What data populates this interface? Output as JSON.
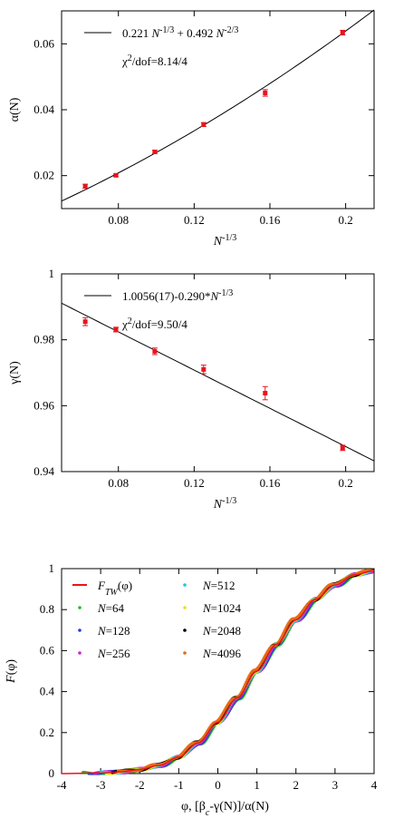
{
  "chart_data": [
    {
      "type": "scatter",
      "ylabel": "α(N)",
      "xlabel": "N^{-1/3}",
      "xlim": [
        0.05,
        0.215
      ],
      "ylim": [
        0.01,
        0.07
      ],
      "xticks": [
        "0.08",
        "0.12",
        "0.16",
        "0.2"
      ],
      "xtick_values": [
        0.08,
        0.12,
        0.16,
        0.2
      ],
      "yticks": [
        "0.02",
        "0.04",
        "0.06"
      ],
      "ytick_values": [
        0.02,
        0.04,
        0.06
      ],
      "legend": {
        "fit_label": "0.221 N^{-1/3} + 0.492 N^{-2/3}",
        "chi2_label": "χ²/dof=8.14/4"
      },
      "fit": {
        "kind": "alpha",
        "a": 0.221,
        "b": 0.492
      },
      "series": [
        {
          "color": "#e8141e",
          "x": [
            0.0625,
            0.0787,
            0.0992,
            0.125,
            0.1575,
            0.1984
          ],
          "y": [
            0.0168,
            0.0201,
            0.0272,
            0.0355,
            0.0451,
            0.0634
          ],
          "err": [
            0.0006,
            0.0004,
            0.0005,
            0.0006,
            0.001,
            0.0007
          ]
        }
      ]
    },
    {
      "type": "scatter",
      "ylabel": "γ(N)",
      "xlabel": "N^{-1/3}",
      "xlim": [
        0.05,
        0.215
      ],
      "ylim": [
        0.94,
        1.0
      ],
      "xticks": [
        "0.08",
        "0.12",
        "0.16",
        "0.2"
      ],
      "xtick_values": [
        0.08,
        0.12,
        0.16,
        0.2
      ],
      "yticks": [
        "0.94",
        "0.96",
        "0.98",
        "1"
      ],
      "ytick_values": [
        0.94,
        0.96,
        0.98,
        1.0
      ],
      "legend": {
        "fit_label": "1.0056(17)-0.290*N^{-1/3}",
        "chi2_label": "χ²/dof=9.50/4"
      },
      "fit": {
        "kind": "gamma",
        "a": 1.0056,
        "b": -0.29
      },
      "series": [
        {
          "color": "#e8141e",
          "x": [
            0.0625,
            0.0787,
            0.0992,
            0.125,
            0.1575,
            0.1984
          ],
          "y": [
            0.9855,
            0.9831,
            0.9765,
            0.971,
            0.9638,
            0.9472
          ],
          "err": [
            0.0012,
            0.0007,
            0.001,
            0.0013,
            0.002,
            0.0008
          ]
        }
      ]
    },
    {
      "type": "scatter",
      "ylabel": "F(φ)",
      "xlabel": "φ, [β_c-γ(N)]/α(N)",
      "xlim": [
        -4,
        4
      ],
      "ylim": [
        0,
        1
      ],
      "xticks": [
        "-4",
        "-3",
        "-2",
        "-1",
        "0",
        "1",
        "2",
        "3",
        "4"
      ],
      "xtick_values": [
        -4,
        -3,
        -2,
        -1,
        0,
        1,
        2,
        3,
        4
      ],
      "yticks": [
        "0",
        "0.2",
        "0.4",
        "0.6",
        "0.8",
        "1"
      ],
      "ytick_values": [
        0,
        0.2,
        0.4,
        0.6,
        0.8,
        1.0
      ],
      "legend": {
        "entries": [
          {
            "label": "F_TW(φ)",
            "color": "#e8141e",
            "style": "line"
          },
          {
            "label": "N=64",
            "color": "#20c020",
            "style": "point"
          },
          {
            "label": "N=128",
            "color": "#2a3ad8",
            "style": "point"
          },
          {
            "label": "N=256",
            "color": "#d020d0",
            "style": "point"
          },
          {
            "label": "N=512",
            "color": "#20c8d8",
            "style": "point"
          },
          {
            "label": "N=1024",
            "color": "#e8e020",
            "style": "point"
          },
          {
            "label": "N=2048",
            "color": "#000000",
            "style": "point"
          },
          {
            "label": "N=4096",
            "color": "#e86a14",
            "style": "point"
          }
        ]
      },
      "cdf_samples": {
        "x": [
          -4,
          -3,
          -2.5,
          -2,
          -1.5,
          -1,
          -0.5,
          0,
          0.5,
          1,
          1.5,
          2,
          2.5,
          3,
          3.5,
          4
        ],
        "y": [
          0.0,
          0.003,
          0.008,
          0.02,
          0.04,
          0.08,
          0.15,
          0.25,
          0.37,
          0.5,
          0.63,
          0.75,
          0.85,
          0.92,
          0.97,
          0.99
        ]
      }
    }
  ]
}
